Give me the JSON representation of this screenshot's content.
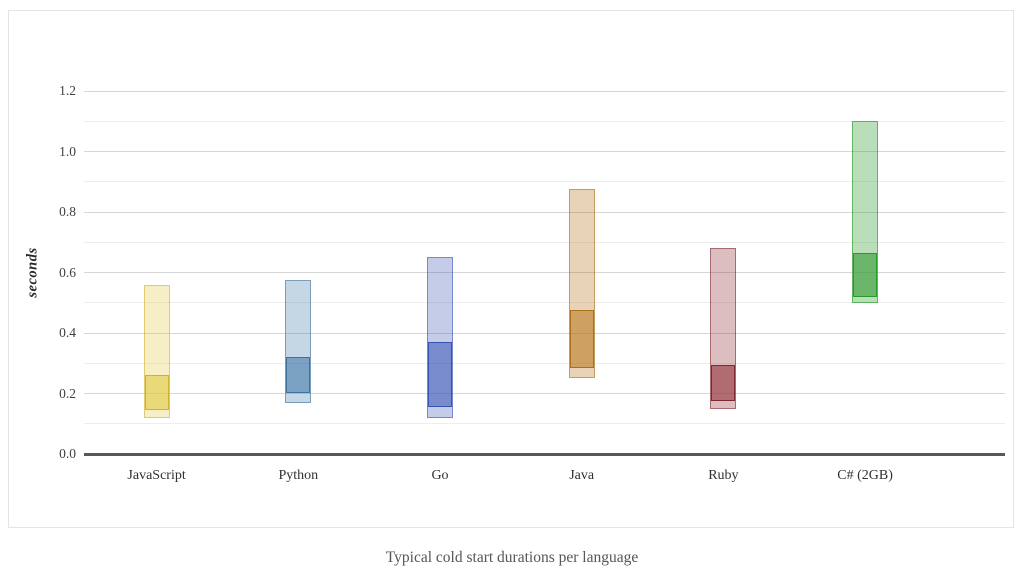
{
  "chart_data": {
    "type": "bar",
    "subtype": "floating-range-with-inner-box",
    "title": "Typical cold start durations per language",
    "ylabel": "seconds",
    "xlabel": "",
    "ylim": [
      0,
      1.3
    ],
    "yticks": [
      0,
      0.2,
      0.4,
      0.6,
      0.8,
      1.0,
      1.2
    ],
    "ytick_format_decimals": 1,
    "grid": true,
    "grid_minor_step": 0.1,
    "legend_position": "none",
    "categories": [
      "JavaScript",
      "Python",
      "Go",
      "Java",
      "Ruby",
      "C# (2GB)"
    ],
    "series": [
      {
        "name": "JavaScript",
        "min": 0.12,
        "box_low": 0.145,
        "box_high": 0.26,
        "max": 0.56,
        "color": {
          "border": "rgba(205,175,40,0.95)",
          "border_outer": "rgba(205,175,40,0.55)",
          "fill_outer": "rgba(224,200,60,0.30)",
          "fill_inner": "rgba(224,200,60,0.55)"
        }
      },
      {
        "name": "Python",
        "min": 0.17,
        "box_low": 0.2,
        "box_high": 0.32,
        "max": 0.575,
        "color": {
          "border": "rgba(54,113,159,0.95)",
          "border_outer": "rgba(54,113,159,0.55)",
          "fill_outer": "rgba(62,118,168,0.30)",
          "fill_inner": "rgba(62,118,168,0.55)"
        }
      },
      {
        "name": "Go",
        "min": 0.12,
        "box_low": 0.155,
        "box_high": 0.37,
        "max": 0.65,
        "color": {
          "border": "rgba(51,82,174,0.95)",
          "border_outer": "rgba(51,82,174,0.55)",
          "fill_outer": "rgba(58,85,180,0.30)",
          "fill_inner": "rgba(58,85,180,0.55)"
        }
      },
      {
        "name": "Java",
        "min": 0.25,
        "box_low": 0.285,
        "box_high": 0.475,
        "max": 0.875,
        "color": {
          "border": "rgba(169,110,21,0.95)",
          "border_outer": "rgba(169,110,21,0.55)",
          "fill_outer": "rgba(184,119,28,0.32)",
          "fill_inner": "rgba(184,119,28,0.55)"
        }
      },
      {
        "name": "Ruby",
        "min": 0.15,
        "box_low": 0.175,
        "box_high": 0.295,
        "max": 0.68,
        "color": {
          "border": "rgba(121,38,44,0.95)",
          "border_outer": "rgba(121,38,44,0.55)",
          "fill_outer": "rgba(148,58,66,0.33)",
          "fill_inner": "rgba(148,58,66,0.62)"
        }
      },
      {
        "name": "C# (2GB)",
        "min": 0.5,
        "box_low": 0.52,
        "box_high": 0.665,
        "max": 1.1,
        "color": {
          "border": "rgba(37,155,37,0.95)",
          "border_outer": "rgba(37,155,37,0.60)",
          "fill_outer": "rgba(58,158,58,0.35)",
          "fill_inner": "rgba(58,158,58,0.62)"
        }
      }
    ]
  }
}
